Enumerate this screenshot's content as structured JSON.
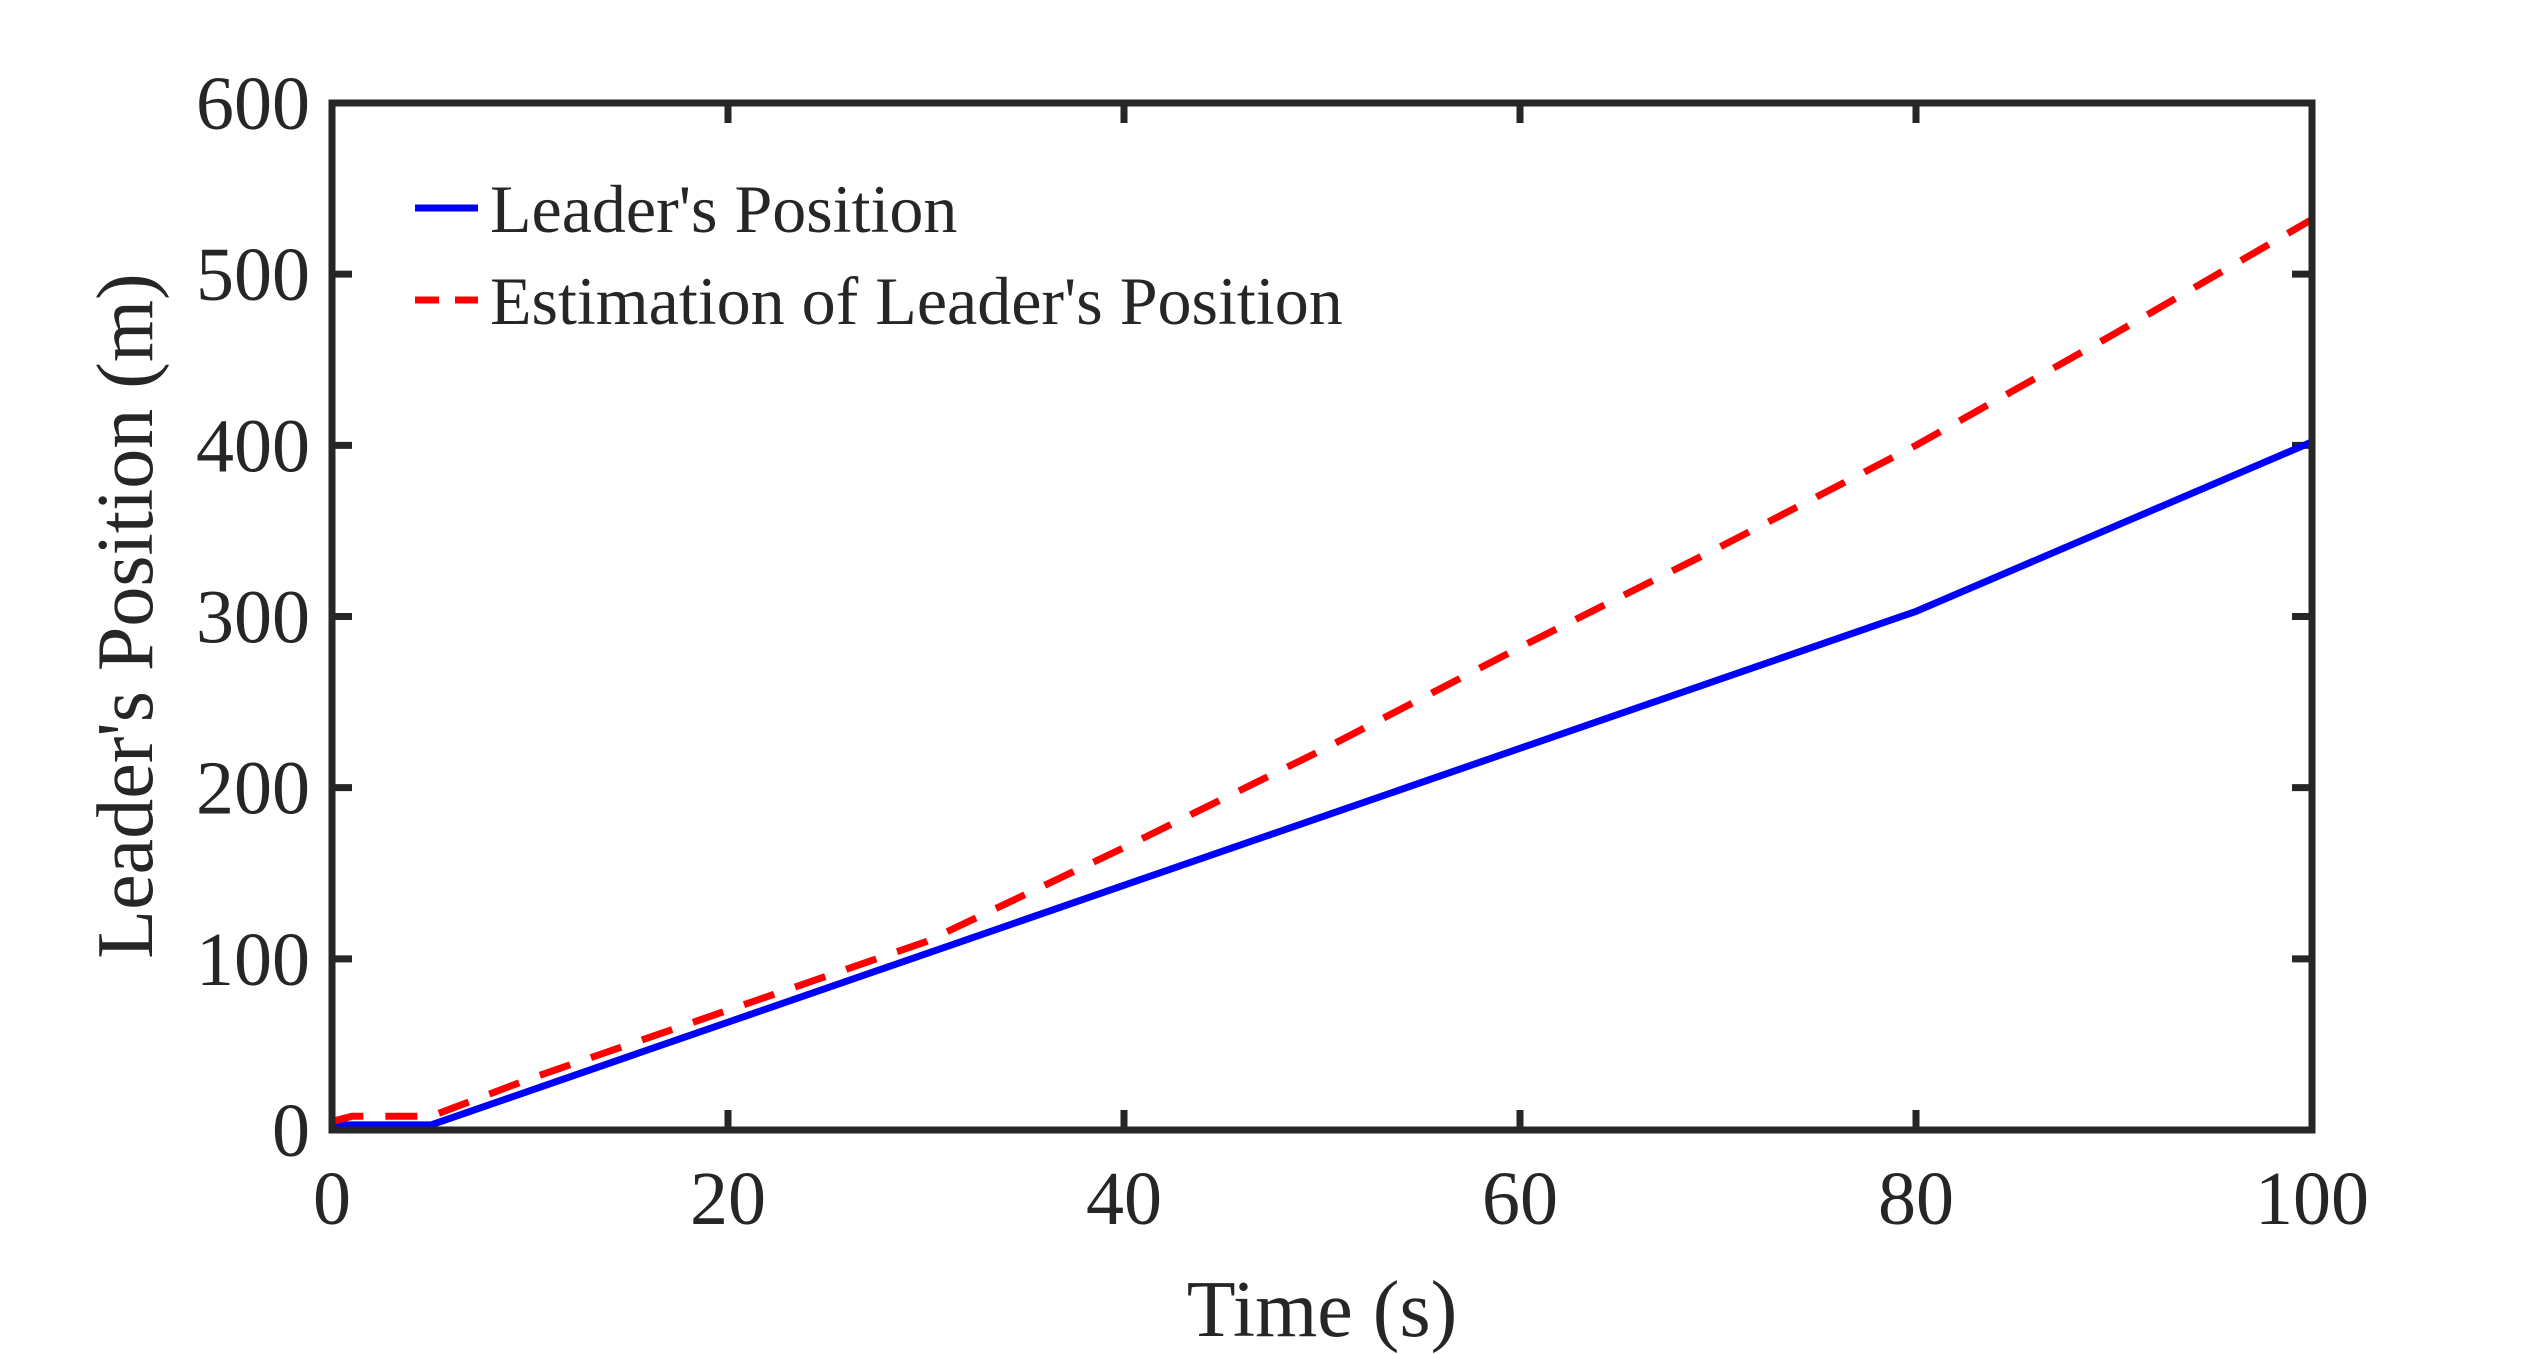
{
  "chart_data": {
    "type": "line",
    "title": "",
    "xlabel": "Time (s)",
    "ylabel": "Leader's Position (m)",
    "xlim": [
      0,
      100
    ],
    "ylim": [
      0,
      600
    ],
    "xticks": [
      "0",
      "20",
      "40",
      "60",
      "80",
      "100"
    ],
    "yticks": [
      "0",
      "100",
      "200",
      "300",
      "400",
      "500",
      "600"
    ],
    "grid": false,
    "legend_position": "top-left",
    "series": [
      {
        "name": "Leader's Position",
        "style": "solid",
        "color": "#0000ff",
        "x": [
          0,
          5,
          80,
          100
        ],
        "y": [
          3,
          3,
          303,
          402
        ]
      },
      {
        "name": "Estimation of Leader's Position",
        "style": "dashed",
        "color": "#ff0000",
        "x": [
          0,
          1,
          5,
          10,
          20,
          30,
          40,
          50,
          60,
          70,
          80,
          90,
          100
        ],
        "y": [
          5,
          8,
          8,
          30,
          70,
          110,
          165,
          222,
          282,
          340,
          400,
          465,
          532
        ]
      }
    ]
  }
}
